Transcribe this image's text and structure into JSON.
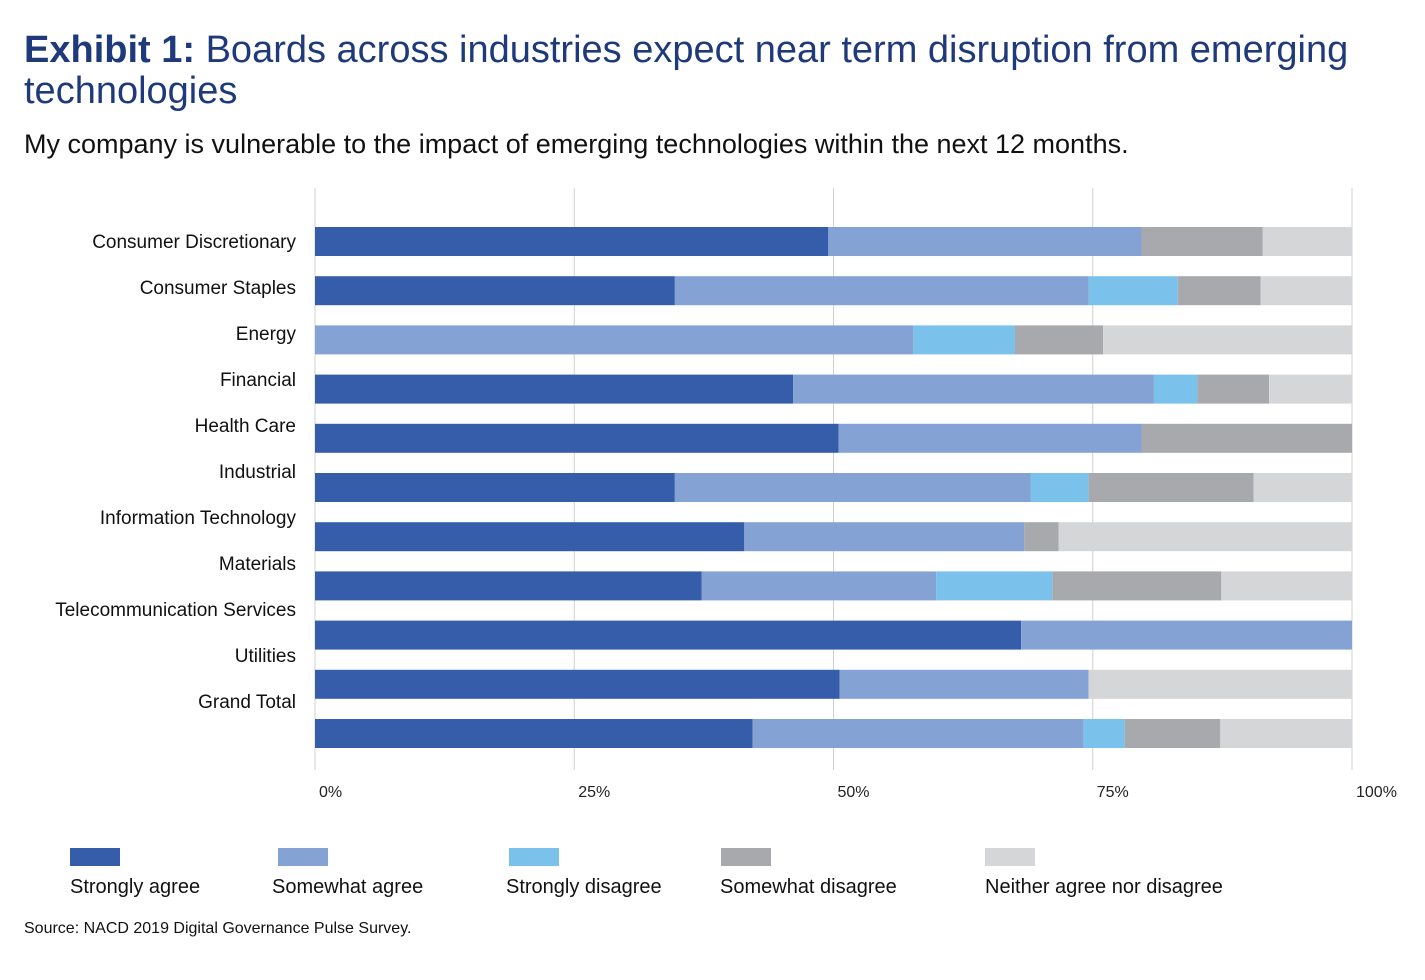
{
  "header": {
    "title_lead": "Exhibit 1:",
    "title_rest": " Boards across industries expect near term disruption from emerging technologies",
    "subtitle": "My company is vulnerable to the impact of emerging technologies within the next 12 months."
  },
  "footer": {
    "source": "Source: NACD 2019 Digital Governance Pulse Survey."
  },
  "chart_data": {
    "type": "bar",
    "orientation": "horizontal",
    "stacked": true,
    "categories": [
      "Consumer Discretionary",
      "Consumer Staples",
      "Energy",
      "Financial",
      "Health Care",
      "Industrial",
      "Information Technology",
      "Materials",
      "Telecommunication Services",
      "Utilities",
      "Grand Total"
    ],
    "series": [
      {
        "name": "Strongly agree",
        "color": "#365da9",
        "values": [
          49.5,
          34.7,
          0,
          46.1,
          50.5,
          34.7,
          41.4,
          37.3,
          68.1,
          50.6,
          42.2
        ]
      },
      {
        "name": "Somewhat agree",
        "color": "#84a3d4",
        "values": [
          30.2,
          39.9,
          57.7,
          34.8,
          29.2,
          34.3,
          27.0,
          22.6,
          31.9,
          24.0,
          31.9
        ]
      },
      {
        "name": "Strongly disagree",
        "color": "#7ac2ec",
        "values": [
          0,
          8.6,
          9.8,
          4.2,
          0,
          5.6,
          0,
          11.2,
          0,
          0,
          4.0
        ]
      },
      {
        "name": "Somewhat disagree",
        "color": "#a8a9ad",
        "values": [
          11.7,
          8.0,
          8.5,
          6.9,
          20.3,
          15.9,
          3.3,
          16.3,
          0,
          0,
          9.2
        ]
      },
      {
        "name": "Neither agree nor disagree",
        "color": "#d5d6d8",
        "values": [
          8.6,
          8.8,
          24.0,
          8.0,
          0,
          9.5,
          28.3,
          12.6,
          0,
          25.4,
          12.7
        ]
      }
    ],
    "x_ticks": [
      "0%",
      "25%",
      "50%",
      "75%",
      "100%"
    ],
    "xlim": [
      0,
      100
    ],
    "grid": true,
    "legend_position": "bottom"
  }
}
